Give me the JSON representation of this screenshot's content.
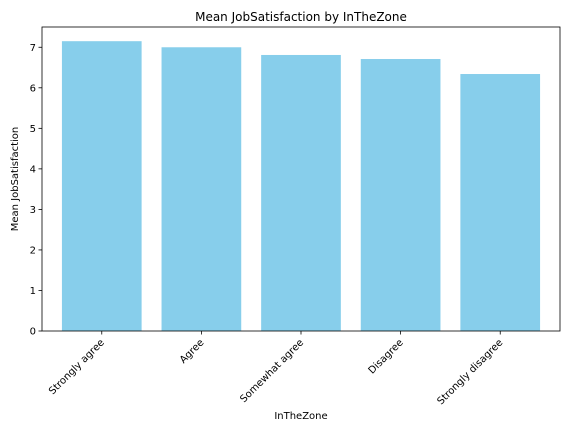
{
  "chart_data": {
    "type": "bar",
    "title": "Mean JobSatisfaction by InTheZone",
    "xlabel": "InTheZone",
    "ylabel": "Mean JobSatisfaction",
    "categories": [
      "Strongly agree",
      "Agree",
      "Somewhat agree",
      "Disagree",
      "Strongly disagree"
    ],
    "values": [
      7.15,
      7.0,
      6.81,
      6.71,
      6.34
    ],
    "ylim": [
      0,
      7.5
    ],
    "yticks": [
      0,
      1,
      2,
      3,
      4,
      5,
      6,
      7
    ],
    "bar_color": "#87ceeb",
    "grid": false,
    "legend": "none"
  }
}
